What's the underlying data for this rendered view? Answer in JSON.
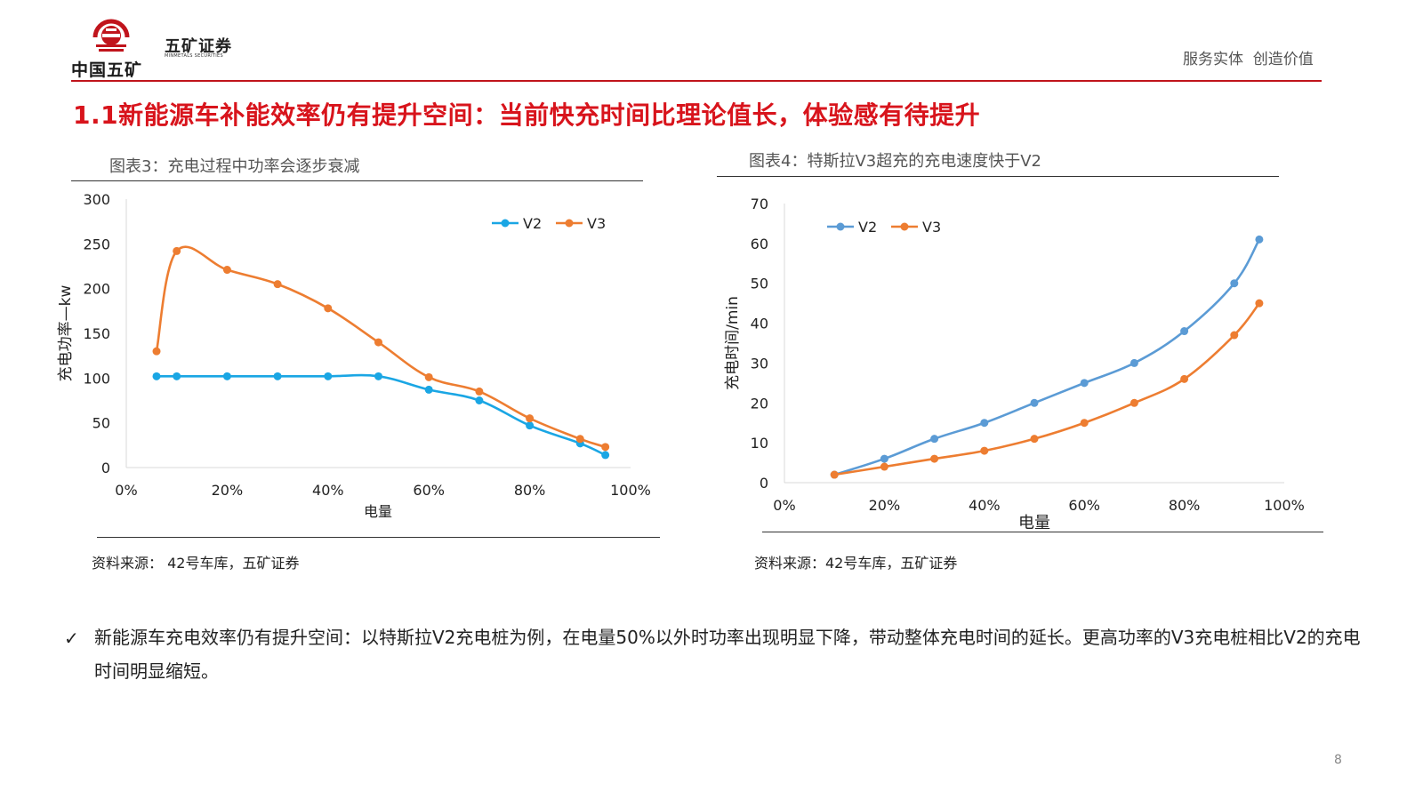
{
  "header": {
    "logo_text": "中国五矿",
    "brand_cn": "五矿证券",
    "brand_en": "MINMETALS SECURITIES",
    "slogan": "服务实体  创造价值",
    "colors": {
      "accent": "#d8141c",
      "rule": "#c0141c"
    }
  },
  "main_title": "1.1新能源车补能效率仍有提升空间：当前快充时间比理论值长，体验感有待提升",
  "left_panel": {
    "title": "图表3：充电过程中功率会逐步衰减",
    "source": "资料来源： 42号车库，五矿证券"
  },
  "right_panel": {
    "title": "图表4：特斯拉V3超充的充电速度快于V2",
    "source": "资料来源：42号车库，五矿证券"
  },
  "chart_data": [
    {
      "type": "line",
      "title": "图表3：充电过程中功率会逐步衰减",
      "xlabel": "电量",
      "ylabel": "充电功率—kw",
      "xlim": [
        0,
        100
      ],
      "ylim": [
        0,
        300
      ],
      "x_ticks": [
        "0%",
        "20%",
        "40%",
        "60%",
        "80%",
        "100%"
      ],
      "y_ticks": [
        "0",
        "50",
        "100",
        "150",
        "200",
        "250",
        "300"
      ],
      "legend_position": "top-right",
      "grid": false,
      "smooth": true,
      "series": [
        {
          "name": "V2",
          "color": "#1aa6e4",
          "x": [
            6,
            10,
            20,
            30,
            40,
            50,
            60,
            70,
            80,
            90,
            95
          ],
          "y": [
            102,
            102,
            102,
            102,
            102,
            102,
            87,
            75,
            47,
            27,
            14
          ]
        },
        {
          "name": "V3",
          "color": "#ed7d31",
          "x": [
            6,
            10,
            20,
            30,
            40,
            50,
            60,
            70,
            80,
            90,
            95
          ],
          "y": [
            130,
            242,
            221,
            205,
            178,
            140,
            101,
            85,
            55,
            32,
            23
          ]
        }
      ]
    },
    {
      "type": "line",
      "title": "图表4：特斯拉V3超充的充电速度快于V2",
      "xlabel": "电量",
      "ylabel": "充电时间/min",
      "xlim": [
        0,
        100
      ],
      "ylim": [
        0,
        70
      ],
      "x_ticks": [
        "0%",
        "20%",
        "40%",
        "60%",
        "80%",
        "100%"
      ],
      "y_ticks": [
        "0",
        "10",
        "20",
        "30",
        "40",
        "50",
        "60",
        "70"
      ],
      "legend_position": "top-left",
      "grid": false,
      "smooth": true,
      "series": [
        {
          "name": "V2",
          "color": "#5b9bd5",
          "x": [
            10,
            20,
            30,
            40,
            50,
            60,
            70,
            80,
            90,
            95
          ],
          "y": [
            2,
            6,
            11,
            15,
            20,
            25,
            30,
            38,
            50,
            61
          ]
        },
        {
          "name": "V3",
          "color": "#ed7d31",
          "x": [
            10,
            20,
            30,
            40,
            50,
            60,
            70,
            80,
            90,
            95
          ],
          "y": [
            2,
            4,
            6,
            8,
            11,
            15,
            20,
            26,
            37,
            45
          ]
        }
      ]
    }
  ],
  "bullet": {
    "mark": "✓",
    "text": "新能源车充电效率仍有提升空间：以特斯拉V2充电桩为例，在电量50%以外时功率出现明显下降，带动整体充电时间的延长。更高功率的V3充电桩相比V2的充电时间明显缩短。"
  },
  "page_number": "8"
}
